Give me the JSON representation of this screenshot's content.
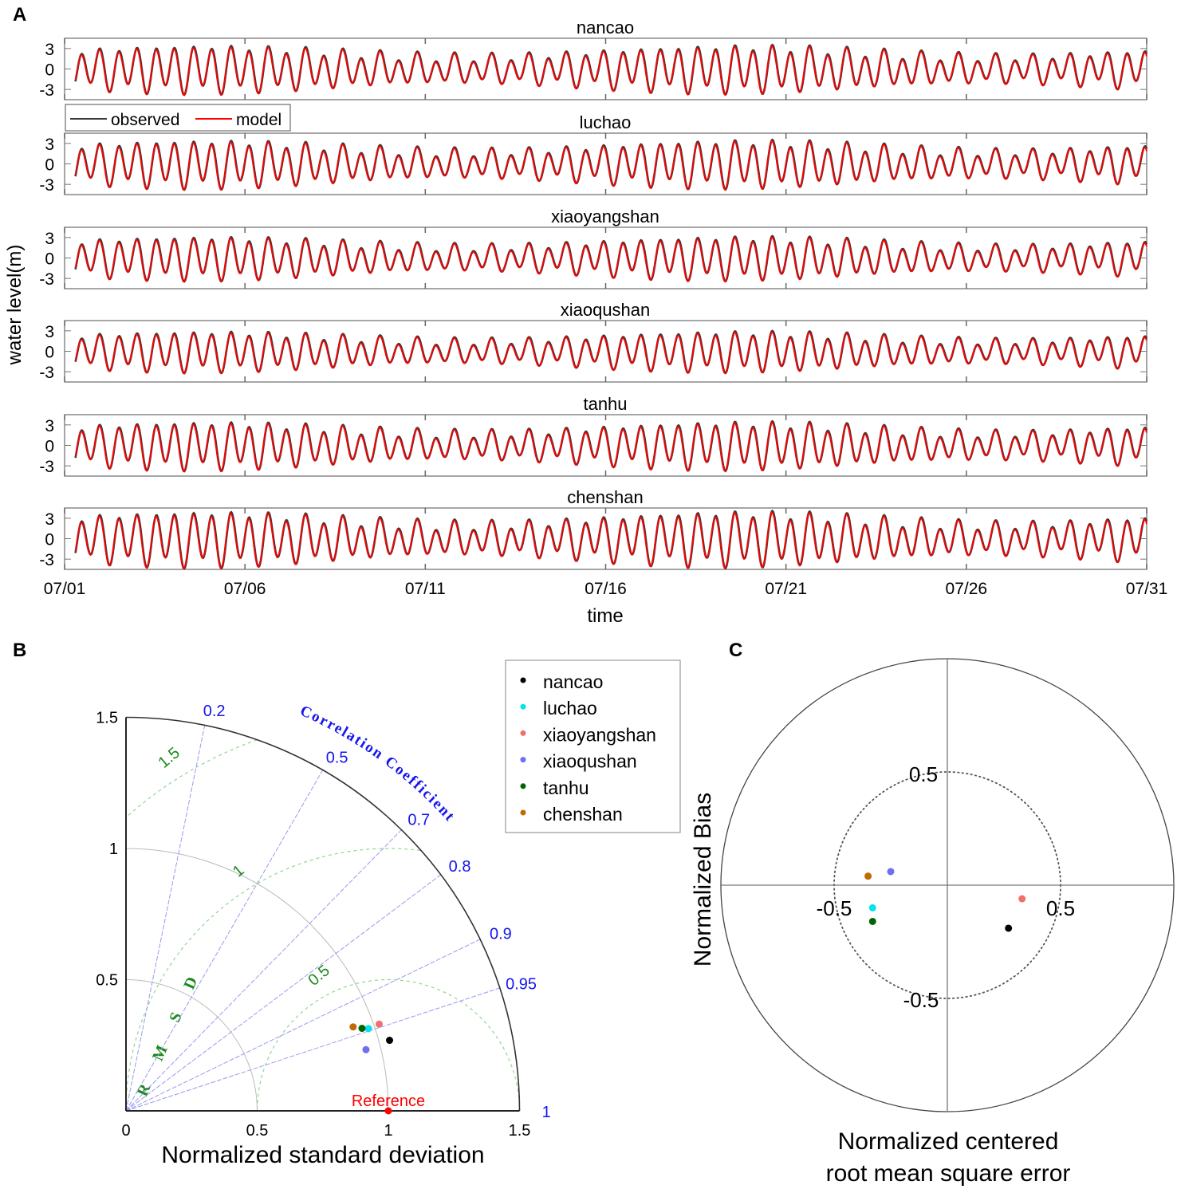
{
  "panel_labels": {
    "a": "A",
    "b": "B",
    "c": "C"
  },
  "chart_data": [
    {
      "type": "line",
      "panel": "A",
      "ylabel": "water level(m)",
      "xlabel": "time",
      "x_ticks": [
        "07/01",
        "07/06",
        "07/11",
        "07/16",
        "07/21",
        "07/26",
        "07/31"
      ],
      "y_ticks": [
        "3",
        "0",
        "-3"
      ],
      "ylim": [
        -4.5,
        4.5
      ],
      "grid": "vertical at date ticks",
      "legend": {
        "placement": "top-left, below first subplot",
        "entries": [
          {
            "label": "observed",
            "color": "#3a3a3a"
          },
          {
            "label": "model",
            "color": "#ff0000"
          }
        ]
      },
      "subplots": [
        {
          "title": "nancao",
          "amplitude_m": 3.3
        },
        {
          "title": "luchao",
          "amplitude_m": 3.3
        },
        {
          "title": "xiaoyangshan",
          "amplitude_m": 3.0
        },
        {
          "title": "xiaoqushan",
          "amplitude_m": 2.8
        },
        {
          "title": "tanhu",
          "amplitude_m": 3.3
        },
        {
          "title": "chenshan",
          "amplitude_m": 3.8
        }
      ]
    },
    {
      "type": "scatter",
      "panel": "B",
      "subtype": "taylor",
      "xlabel": "Normalized standard deviation",
      "x_ticks": [
        "0",
        "0.5",
        "1",
        "1.5"
      ],
      "y_ticks": [
        "0.5",
        "1",
        "1.5"
      ],
      "std_max": 1.5,
      "correlation_label": "Correlation Coefficient",
      "correlation_ticks": [
        "0.2",
        "0.5",
        "0.7",
        "0.8",
        "0.9",
        "0.95",
        "1"
      ],
      "rmsd_label": "RMSD",
      "rmsd_ticks": [
        "0.5",
        "1",
        "1.5"
      ],
      "reference": {
        "label": "Reference",
        "std": 1.0,
        "color": "#ff0000"
      },
      "points": [
        {
          "name": "nancao",
          "std": 1.04,
          "corr": 0.966,
          "color": "#000000"
        },
        {
          "name": "luchao",
          "std": 0.976,
          "corr": 0.947,
          "color": "#00e5ee"
        },
        {
          "name": "xiaoyangshan",
          "std": 1.02,
          "corr": 0.946,
          "color": "#f07070"
        },
        {
          "name": "xiaoqushan",
          "std": 0.944,
          "corr": 0.969,
          "color": "#6f6ff0"
        },
        {
          "name": "tanhu",
          "std": 0.953,
          "corr": 0.944,
          "color": "#006400"
        },
        {
          "name": "chenshan",
          "std": 0.923,
          "corr": 0.938,
          "color": "#c06a00"
        }
      ],
      "legend": {
        "placement": "top-right"
      }
    },
    {
      "type": "scatter",
      "panel": "C",
      "subtype": "target",
      "xlabel": "Normalized centered\nroot mean square error",
      "xlabel_lines": [
        "Normalized centered",
        "root mean square error"
      ],
      "ylabel": "Normalized Bias",
      "xlim": [
        -1,
        1
      ],
      "ylim": [
        -1,
        1
      ],
      "tick_labels": {
        "top": "0.5",
        "left": "-0.5",
        "right": "0.5",
        "bottom": "-0.5"
      },
      "points": [
        {
          "name": "nancao",
          "x": 0.27,
          "y": -0.19,
          "color": "#000000"
        },
        {
          "name": "luchao",
          "x": -0.33,
          "y": -0.1,
          "color": "#00e5ee"
        },
        {
          "name": "xiaoyangshan",
          "x": 0.33,
          "y": -0.06,
          "color": "#f07070"
        },
        {
          "name": "xiaoqushan",
          "x": -0.25,
          "y": 0.06,
          "color": "#6f6ff0"
        },
        {
          "name": "tanhu",
          "x": -0.33,
          "y": -0.16,
          "color": "#006400"
        },
        {
          "name": "chenshan",
          "x": -0.35,
          "y": 0.04,
          "color": "#c06a00"
        }
      ]
    }
  ]
}
